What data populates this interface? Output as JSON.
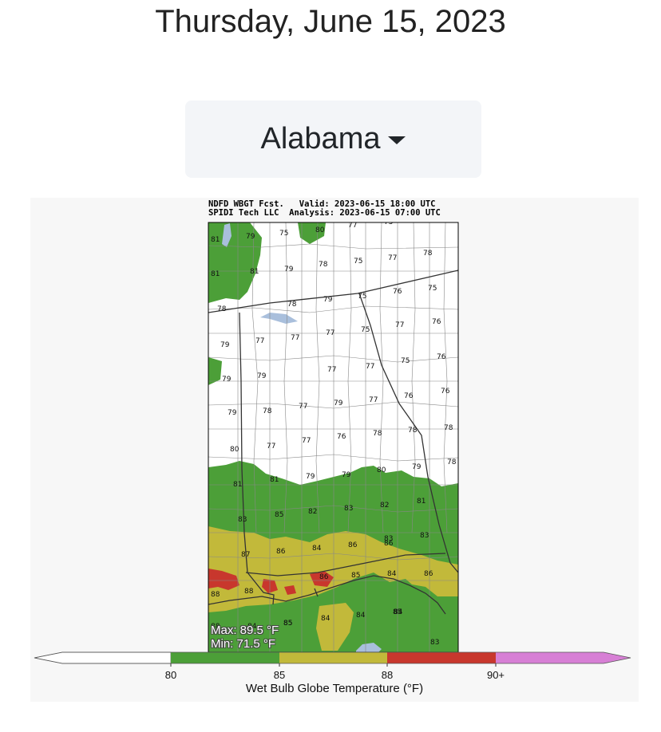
{
  "page": {
    "date": "Thursday, June 15, 2023"
  },
  "state_selector": {
    "selected": "Alabama",
    "icon": "caret-down-icon"
  },
  "map": {
    "header_left_1": "NDFD WBGT Fcst.",
    "header_right_1": "Valid: 2023-06-15 18:00 UTC",
    "header_left_2": "SPIDI Tech LLC",
    "header_right_2": "Analysis: 2023-06-15 07:00 UTC",
    "max_text": "Max: 89.5 °F",
    "min_text": "Min: 71.5 °F",
    "colorbar": {
      "label": "Wet Bulb Globe Temperature (°F)",
      "ticks": [
        "80",
        "85",
        "88",
        "90+"
      ],
      "colors": {
        "below_80": "#ffffff",
        "80_85": "#4c9f38",
        "85_88": "#c2b93a",
        "88_90": "#c8372d",
        "90_plus": "#d77fd5"
      }
    },
    "water_color": "#a9bfdc",
    "labels": [
      {
        "t": "81"
      },
      {
        "t": "79"
      },
      {
        "t": "75"
      },
      {
        "t": "80"
      },
      {
        "t": "77"
      },
      {
        "t": "75"
      },
      {
        "t": "81"
      },
      {
        "t": "81"
      },
      {
        "t": "79"
      },
      {
        "t": "78"
      },
      {
        "t": "75"
      },
      {
        "t": "77"
      },
      {
        "t": "78"
      },
      {
        "t": "78"
      },
      {
        "t": "78"
      },
      {
        "t": "79"
      },
      {
        "t": "75"
      },
      {
        "t": "76"
      },
      {
        "t": "75"
      },
      {
        "t": "79"
      },
      {
        "t": "77"
      },
      {
        "t": "77"
      },
      {
        "t": "77"
      },
      {
        "t": "75"
      },
      {
        "t": "77"
      },
      {
        "t": "76"
      },
      {
        "t": "79"
      },
      {
        "t": "79"
      },
      {
        "t": "77"
      },
      {
        "t": "77"
      },
      {
        "t": "75"
      },
      {
        "t": "76"
      },
      {
        "t": "79"
      },
      {
        "t": "78"
      },
      {
        "t": "77"
      },
      {
        "t": "79"
      },
      {
        "t": "77"
      },
      {
        "t": "76"
      },
      {
        "t": "76"
      },
      {
        "t": "80"
      },
      {
        "t": "77"
      },
      {
        "t": "77"
      },
      {
        "t": "76"
      },
      {
        "t": "78"
      },
      {
        "t": "78"
      },
      {
        "t": "78"
      },
      {
        "t": "81"
      },
      {
        "t": "81"
      },
      {
        "t": "79"
      },
      {
        "t": "79"
      },
      {
        "t": "80"
      },
      {
        "t": "79"
      },
      {
        "t": "78"
      },
      {
        "t": "85"
      },
      {
        "t": "82"
      },
      {
        "t": "83"
      },
      {
        "t": "82"
      },
      {
        "t": "81"
      },
      {
        "t": "83"
      },
      {
        "t": "83"
      },
      {
        "t": "83"
      },
      {
        "t": "87"
      },
      {
        "t": "86"
      },
      {
        "t": "84"
      },
      {
        "t": "86"
      },
      {
        "t": "86"
      },
      {
        "t": "88"
      },
      {
        "t": "88"
      },
      {
        "t": "86"
      },
      {
        "t": "85"
      },
      {
        "t": "84"
      },
      {
        "t": "86"
      },
      {
        "t": "88"
      },
      {
        "t": "85"
      },
      {
        "t": "84"
      },
      {
        "t": "84"
      },
      {
        "t": "85"
      },
      {
        "t": "84"
      },
      {
        "t": "85"
      },
      {
        "t": "84"
      },
      {
        "t": "83"
      }
    ]
  }
}
